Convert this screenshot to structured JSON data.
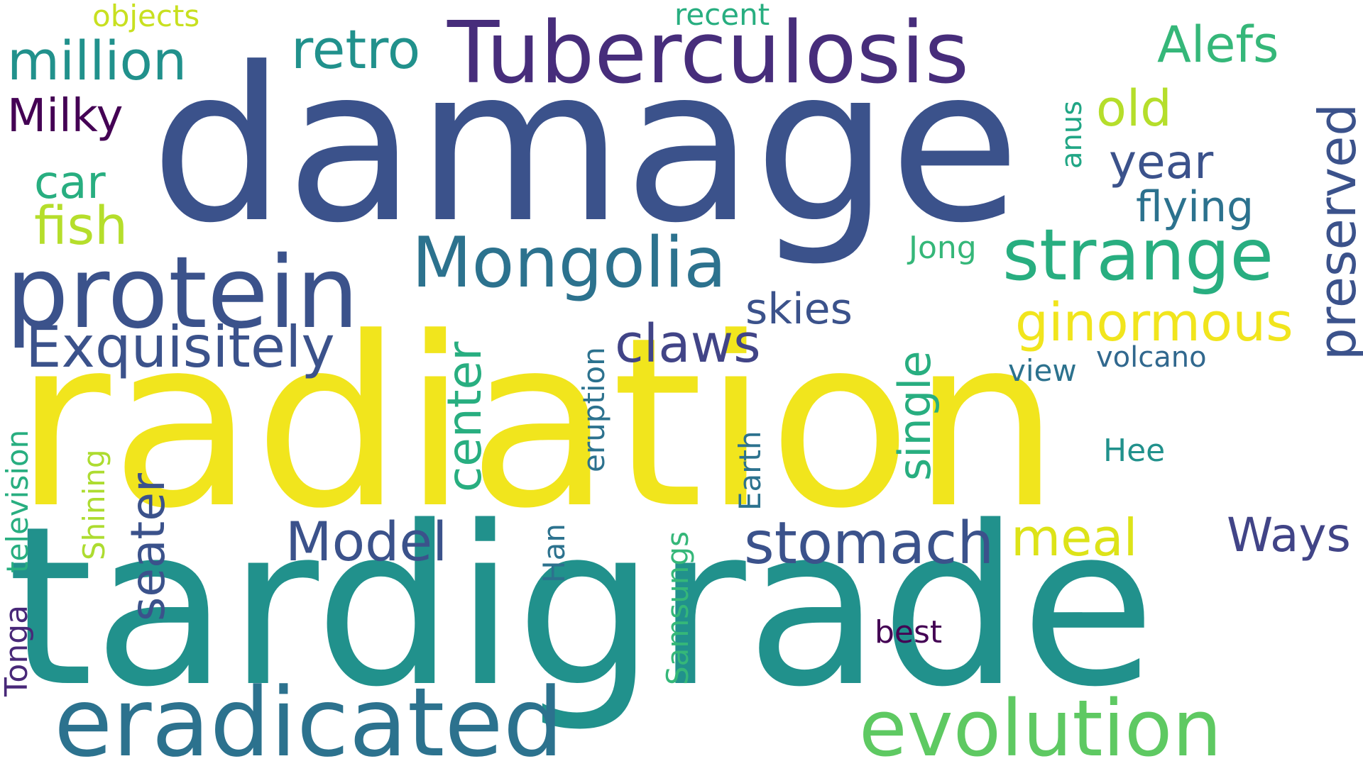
{
  "words": {
    "radiation": {
      "text": "radiation",
      "color": "#f1e51d"
    },
    "tardigrade": {
      "text": "tardigrade",
      "color": "#21918c"
    },
    "damage": {
      "text": "damage",
      "color": "#3b528b"
    },
    "tuberculosis": {
      "text": "Tuberculosis",
      "color": "#472d7b"
    },
    "protein": {
      "text": "protein",
      "color": "#3b528b"
    },
    "eradicated": {
      "text": "eradicated",
      "color": "#2c728e"
    },
    "evolution": {
      "text": "evolution",
      "color": "#5ec962"
    },
    "mongolia": {
      "text": "Mongolia",
      "color": "#2c728e"
    },
    "strange": {
      "text": "strange",
      "color": "#28ae80"
    },
    "exquisitely": {
      "text": "Exquisitely",
      "color": "#3b528b"
    },
    "million": {
      "text": "million",
      "color": "#21918c"
    },
    "retro": {
      "text": "retro",
      "color": "#21918c"
    },
    "alefs": {
      "text": "Alefs",
      "color": "#35b779"
    },
    "ginormous": {
      "text": "ginormous",
      "color": "#f1e51d"
    },
    "stomach": {
      "text": "stomach",
      "color": "#3b528b"
    },
    "model": {
      "text": "Model",
      "color": "#3b528b"
    },
    "claws": {
      "text": "claws",
      "color": "#414487"
    },
    "preserved": {
      "text": "preserved",
      "color": "#3b528b"
    },
    "seater": {
      "text": "seater",
      "color": "#3b528b"
    },
    "center": {
      "text": "center",
      "color": "#28ae80"
    },
    "single": {
      "text": "single",
      "color": "#28ae80"
    },
    "fish": {
      "text": "fish",
      "color": "#b5de2b"
    },
    "milky": {
      "text": "Milky",
      "color": "#440154"
    },
    "old": {
      "text": "old",
      "color": "#b5de2b"
    },
    "year": {
      "text": "year",
      "color": "#3b528b"
    },
    "flying": {
      "text": "flying",
      "color": "#2c728e"
    },
    "car": {
      "text": "car",
      "color": "#28ae80"
    },
    "skies": {
      "text": "skies",
      "color": "#3b528b"
    },
    "meal": {
      "text": "meal",
      "color": "#dde318"
    },
    "ways": {
      "text": "Ways",
      "color": "#414487"
    },
    "eruption": {
      "text": "eruption",
      "color": "#2c728e"
    },
    "television": {
      "text": "television",
      "color": "#28ae80"
    },
    "shining": {
      "text": "Shining",
      "color": "#addc30"
    },
    "samsungs": {
      "text": "Samsungs",
      "color": "#35b779"
    },
    "earth": {
      "text": "Earth",
      "color": "#2c728e"
    },
    "han": {
      "text": "Han",
      "color": "#2c728e"
    },
    "tonga": {
      "text": "Tonga",
      "color": "#482878"
    },
    "best": {
      "text": "best",
      "color": "#440154"
    },
    "hee": {
      "text": "Hee",
      "color": "#21918c"
    },
    "volcano": {
      "text": "volcano",
      "color": "#31688e"
    },
    "view": {
      "text": "view",
      "color": "#2c728e"
    },
    "jong": {
      "text": "Jong",
      "color": "#35b779"
    },
    "anus": {
      "text": "anus",
      "color": "#21a685"
    },
    "objects": {
      "text": "objects",
      "color": "#c8e020"
    },
    "recent": {
      "text": "recent",
      "color": "#28ae80"
    }
  }
}
